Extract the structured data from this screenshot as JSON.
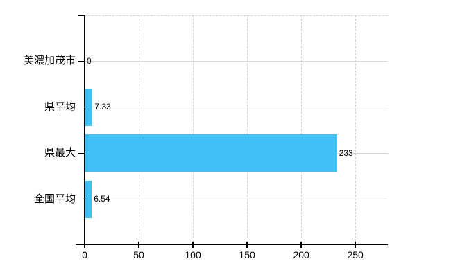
{
  "chart_data": {
    "type": "bar",
    "orientation": "horizontal",
    "title": "",
    "categories": [
      "美濃加茂市",
      "県平均",
      "県最大",
      "全国平均"
    ],
    "values": [
      0,
      7.33,
      233,
      6.54
    ],
    "value_labels": [
      "0",
      "7.33",
      "233",
      "6.54"
    ],
    "x_ticks": [
      0,
      50,
      100,
      150,
      200,
      250
    ],
    "x_tick_labels": [
      "0",
      "50",
      "100",
      "150",
      "200",
      "250"
    ],
    "xlim": [
      0,
      280
    ],
    "grid": true,
    "legend_position": "none",
    "colors": {
      "bar": "#3ec0f4",
      "axis": "#000000",
      "h_gridline": "#d4dbd4",
      "v_gridline": "#d6d0d6",
      "top_border": "#d9cedd",
      "text": "#000000",
      "background": "#ffffff"
    }
  }
}
